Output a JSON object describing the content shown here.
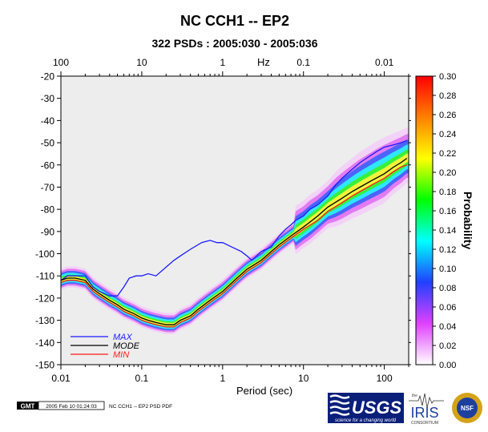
{
  "title": "NC CCH1 -- EP2",
  "subtitle": "322 PSDs : 2005:030 - 2005:036",
  "footer": {
    "gmt_badge": "GMT",
    "timestamp": "2005 Feb 10 01:24:03",
    "caption": "NC CCH1 -- EP2 PSD PDF"
  },
  "logos": {
    "usgs": "USGS",
    "usgs_tagline": "science for a changing world",
    "iris_small": "the",
    "iris": "IRIS",
    "iris_sub": "CONSORTIUM",
    "nsf": "NSF"
  },
  "chart_data": {
    "type": "heatmap",
    "xlabel": "Period (sec)",
    "ylabel": "",
    "top_axis_label": "Hz",
    "colorbar_label": "Probability",
    "x_scale": "log",
    "xlim": [
      0.01,
      200
    ],
    "ylim": [
      -150,
      -20
    ],
    "x_ticks": [
      {
        "value": 0.01,
        "label": "0.01"
      },
      {
        "value": 0.1,
        "label": "0.1"
      },
      {
        "value": 1,
        "label": "1"
      },
      {
        "value": 10,
        "label": "10"
      },
      {
        "value": 100,
        "label": "100"
      }
    ],
    "top_ticks": [
      {
        "period": 0.01,
        "label": "100"
      },
      {
        "period": 0.1,
        "label": "10"
      },
      {
        "period": 1,
        "label": "1"
      },
      {
        "period": 10,
        "label": "0.1"
      },
      {
        "period": 100,
        "label": "0.01"
      }
    ],
    "y_ticks": [
      "-20",
      "-30",
      "-40",
      "-50",
      "-60",
      "-70",
      "-80",
      "-90",
      "-100",
      "-110",
      "-120",
      "-130",
      "-140",
      "-150"
    ],
    "y_tick_values": [
      -20,
      -30,
      -40,
      -50,
      -60,
      -70,
      -80,
      -90,
      -100,
      -110,
      -120,
      -130,
      -140,
      -150
    ],
    "colorbar": {
      "min": 0.0,
      "max": 0.3,
      "ticks": [
        "0.00",
        "0.02",
        "0.04",
        "0.06",
        "0.08",
        "0.10",
        "0.12",
        "0.14",
        "0.16",
        "0.18",
        "0.20",
        "0.22",
        "0.24",
        "0.26",
        "0.28",
        "0.30"
      ],
      "tick_values": [
        0,
        0.02,
        0.04,
        0.06,
        0.08,
        0.1,
        0.12,
        0.14,
        0.16,
        0.18,
        0.2,
        0.22,
        0.24,
        0.26,
        0.28,
        0.3
      ],
      "colors": [
        "#ffffff",
        "#e040ff",
        "#2040ff",
        "#00ffff",
        "#00ff00",
        "#ffff00",
        "#ff8000",
        "#ff0000"
      ]
    },
    "legend": {
      "placement": "bottom-left",
      "entries": [
        {
          "name": "MAX",
          "color": "#1a1aff",
          "label_color": "#1a1aff"
        },
        {
          "name": "MODE",
          "color": "#000000",
          "label_color": "#000000"
        },
        {
          "name": "MIN",
          "color": "#ff1a1a",
          "label_color": "#ff1a1a"
        }
      ]
    },
    "series": [
      {
        "name": "MAX",
        "color": "#1a1aff",
        "x": [
          0.01,
          0.012,
          0.015,
          0.02,
          0.025,
          0.03,
          0.04,
          0.05,
          0.06,
          0.07,
          0.085,
          0.1,
          0.12,
          0.15,
          0.2,
          0.25,
          0.3,
          0.4,
          0.55,
          0.7,
          0.85,
          1.0,
          1.3,
          1.7,
          2.0,
          2.3,
          3.0,
          4.0,
          5.0,
          6.0,
          7.0,
          8.0,
          10.0,
          12.0,
          15.0,
          20.0,
          25.0,
          30.0,
          40.0,
          50.0,
          60.0,
          80.0,
          100.0,
          130.0,
          160.0,
          190.0
        ],
        "y": [
          -112,
          -110,
          -110,
          -110,
          -115,
          -117,
          -119,
          -119,
          -115,
          -111,
          -110,
          -110,
          -109,
          -110,
          -106,
          -103,
          -101,
          -98,
          -95,
          -94,
          -95,
          -95,
          -97,
          -99,
          -101,
          -103,
          -99,
          -97,
          -92,
          -89,
          -87,
          -85,
          -83,
          -80,
          -78,
          -74,
          -69,
          -66,
          -62,
          -59,
          -57,
          -54,
          -52,
          -51,
          -50,
          -49
        ]
      },
      {
        "name": "MODE",
        "color": "#000000",
        "x": [
          0.01,
          0.012,
          0.015,
          0.02,
          0.025,
          0.03,
          0.04,
          0.05,
          0.06,
          0.08,
          0.1,
          0.12,
          0.15,
          0.2,
          0.25,
          0.3,
          0.4,
          0.5,
          0.7,
          1.0,
          1.5,
          2.0,
          3.0,
          4.0,
          5.0,
          7.0,
          10.0,
          15.0,
          20.0,
          30.0,
          40.0,
          50.0,
          70.0,
          100.0,
          130.0,
          160.0,
          190.0
        ],
        "y": [
          -112,
          -111,
          -111,
          -112,
          -116,
          -118,
          -121,
          -123,
          -125,
          -127,
          -129,
          -130,
          -131,
          -132,
          -132,
          -130,
          -128,
          -125,
          -121,
          -117,
          -111,
          -107,
          -103,
          -99,
          -96,
          -92,
          -88,
          -83,
          -79,
          -75,
          -72,
          -70,
          -67,
          -64,
          -61,
          -59,
          -57
        ]
      },
      {
        "name": "MIN",
        "color": "#ff1a1a",
        "x": [
          0.01,
          0.012,
          0.015,
          0.02,
          0.025,
          0.03,
          0.04,
          0.05,
          0.06,
          0.08,
          0.1,
          0.12,
          0.15,
          0.2,
          0.25,
          0.3,
          0.4,
          0.5,
          0.7,
          1.0,
          1.5,
          2.0,
          3.0,
          4.0,
          5.0,
          7.0,
          10.0,
          15.0,
          20.0,
          30.0,
          40.0,
          50.0,
          70.0,
          100.0,
          130.0,
          160.0,
          190.0
        ],
        "y": [
          -113,
          -112,
          -112,
          -113,
          -117,
          -119,
          -122,
          -124,
          -126,
          -128,
          -130,
          -131,
          -132,
          -133,
          -133,
          -131,
          -129,
          -126,
          -122,
          -118,
          -112,
          -108,
          -104,
          -100,
          -97,
          -93,
          -89,
          -85,
          -81,
          -77,
          -74,
          -72,
          -69,
          -66,
          -63,
          -61,
          -60
        ]
      }
    ]
  }
}
